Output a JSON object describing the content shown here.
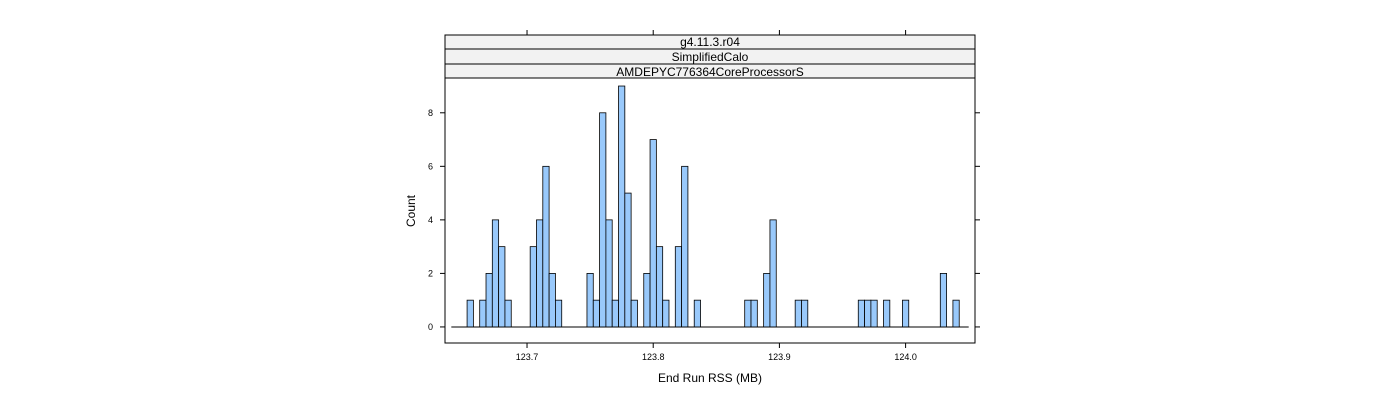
{
  "chart_data": {
    "type": "bar",
    "strips": [
      "g4.11.3.r04",
      "SimplifiedCalo",
      "AMDEPYC776364CoreProcessorS"
    ],
    "xlabel": "End Run RSS (MB)",
    "ylabel": "Count",
    "xlim": [
      123.635,
      124.055
    ],
    "ylim": [
      -0.6,
      9.3
    ],
    "x_ticks": [
      123.7,
      123.8,
      123.9,
      124.0
    ],
    "x_tick_labels": [
      "123.7",
      "123.8",
      "123.9",
      "124.0"
    ],
    "y_ticks": [
      0,
      2,
      4,
      6,
      8
    ],
    "y_tick_labels": [
      "0",
      "2",
      "4",
      "6",
      "8"
    ],
    "bin_width": 0.005,
    "bar_color": "#99c9fb",
    "bins": [
      {
        "x": 123.655,
        "count": 1
      },
      {
        "x": 123.665,
        "count": 1
      },
      {
        "x": 123.67,
        "count": 2
      },
      {
        "x": 123.675,
        "count": 4
      },
      {
        "x": 123.68,
        "count": 3
      },
      {
        "x": 123.685,
        "count": 1
      },
      {
        "x": 123.705,
        "count": 3
      },
      {
        "x": 123.71,
        "count": 4
      },
      {
        "x": 123.715,
        "count": 6
      },
      {
        "x": 123.72,
        "count": 2
      },
      {
        "x": 123.725,
        "count": 1
      },
      {
        "x": 123.75,
        "count": 2
      },
      {
        "x": 123.755,
        "count": 1
      },
      {
        "x": 123.76,
        "count": 8
      },
      {
        "x": 123.765,
        "count": 4
      },
      {
        "x": 123.77,
        "count": 1
      },
      {
        "x": 123.775,
        "count": 9
      },
      {
        "x": 123.78,
        "count": 5
      },
      {
        "x": 123.785,
        "count": 1
      },
      {
        "x": 123.795,
        "count": 2
      },
      {
        "x": 123.8,
        "count": 7
      },
      {
        "x": 123.805,
        "count": 3
      },
      {
        "x": 123.81,
        "count": 1
      },
      {
        "x": 123.82,
        "count": 3
      },
      {
        "x": 123.825,
        "count": 6
      },
      {
        "x": 123.835,
        "count": 1
      },
      {
        "x": 123.875,
        "count": 1
      },
      {
        "x": 123.88,
        "count": 1
      },
      {
        "x": 123.89,
        "count": 2
      },
      {
        "x": 123.895,
        "count": 4
      },
      {
        "x": 123.915,
        "count": 1
      },
      {
        "x": 123.92,
        "count": 1
      },
      {
        "x": 123.965,
        "count": 1
      },
      {
        "x": 123.97,
        "count": 1
      },
      {
        "x": 123.975,
        "count": 1
      },
      {
        "x": 123.985,
        "count": 1
      },
      {
        "x": 124.0,
        "count": 1
      },
      {
        "x": 124.03,
        "count": 2
      },
      {
        "x": 124.04,
        "count": 1
      }
    ],
    "baseline_range": [
      123.64,
      124.05
    ]
  }
}
